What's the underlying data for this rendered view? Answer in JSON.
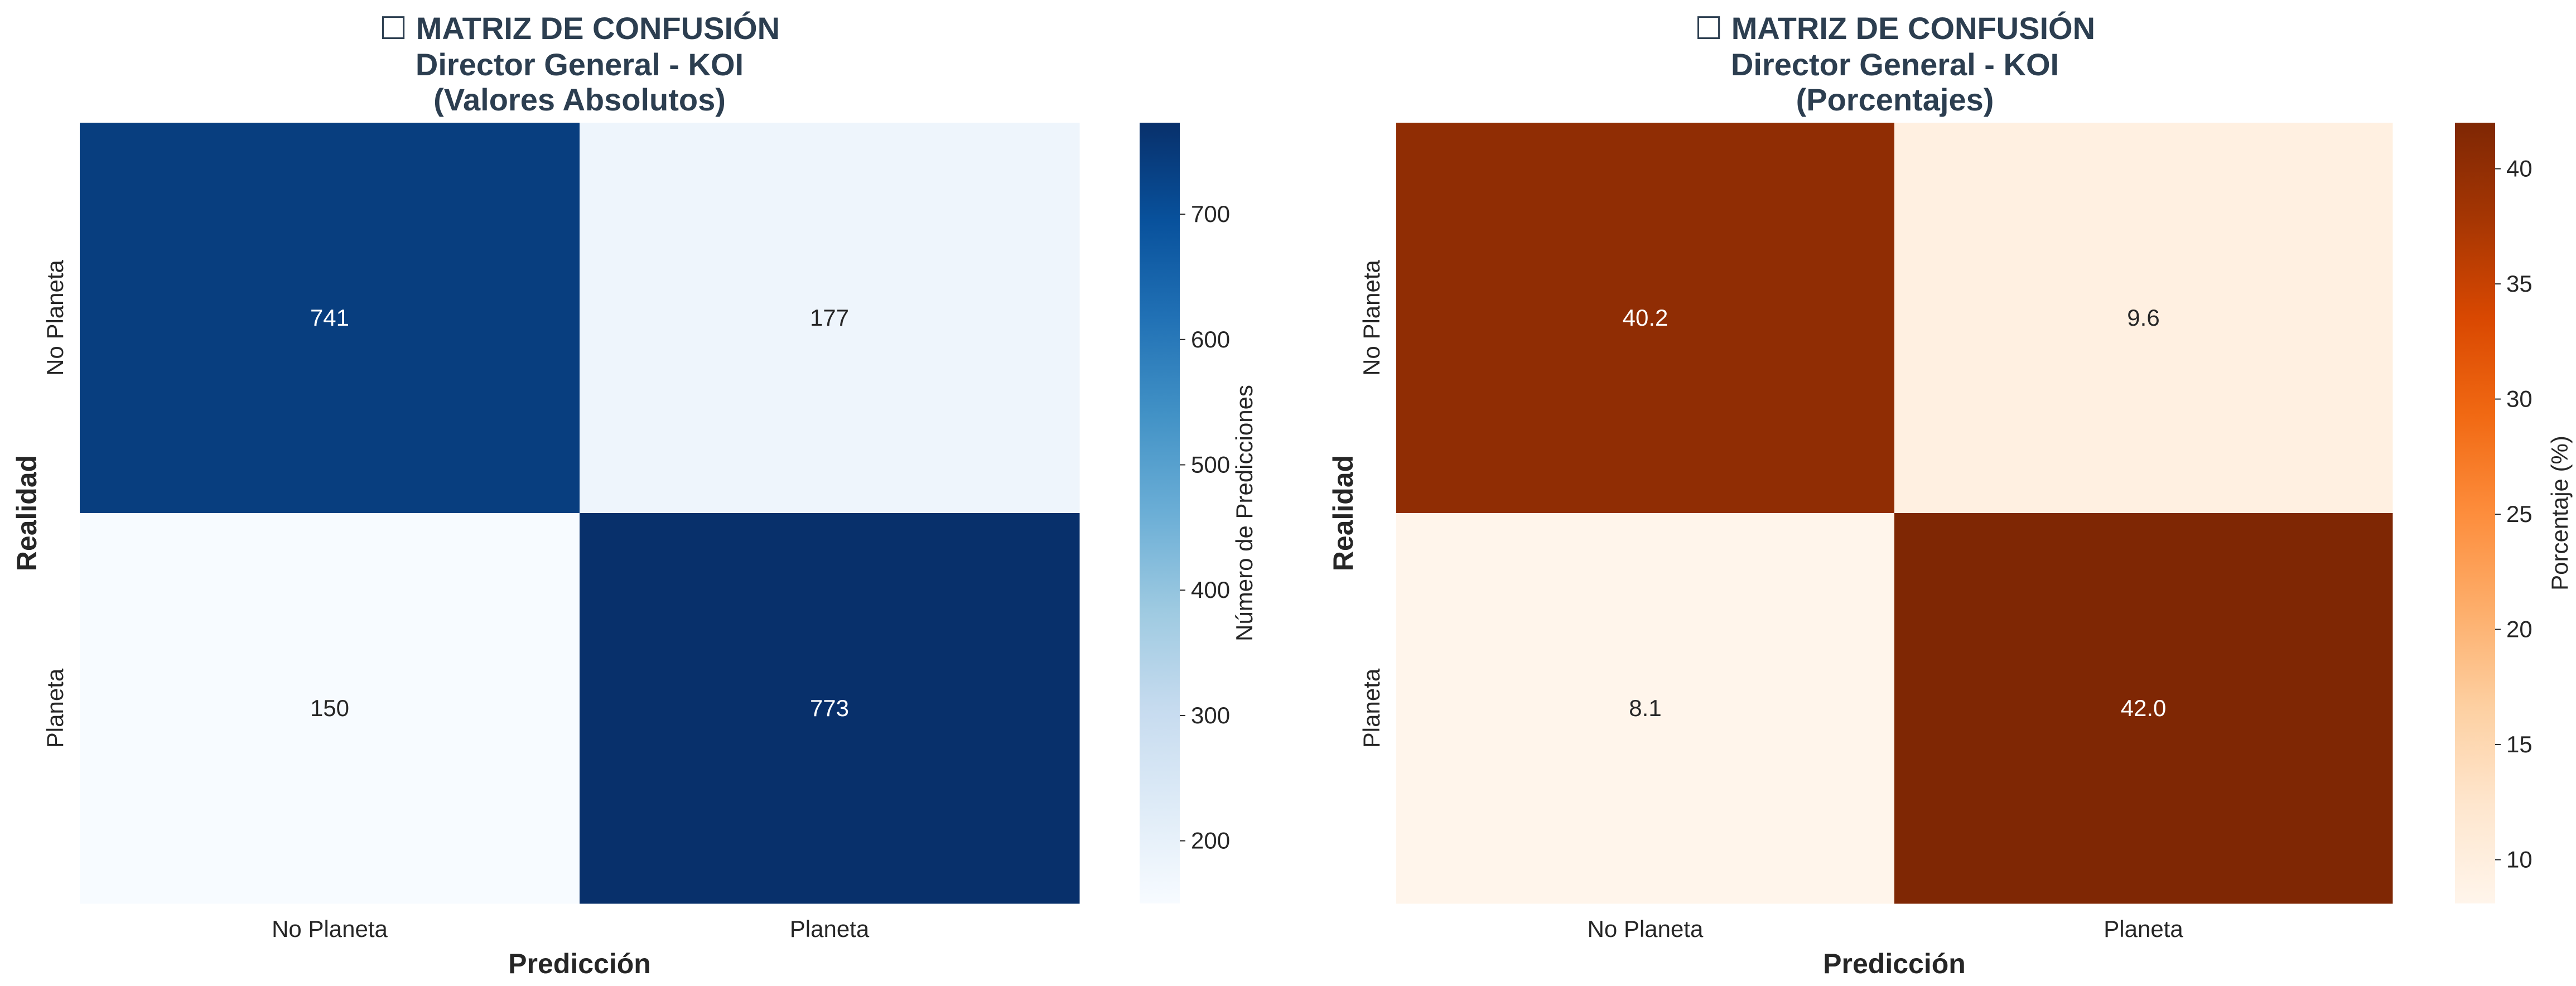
{
  "chart_data": [
    {
      "type": "heatmap",
      "title": [
        "☐ MATRIZ DE CONFUSIÓN",
        "Director General - KOI",
        "(Valores Absolutos)"
      ],
      "xlabel": "Predicción",
      "ylabel": "Realidad",
      "x_categories": [
        "No Planeta",
        "Planeta"
      ],
      "y_categories": [
        "No Planeta",
        "Planeta"
      ],
      "values": [
        [
          741,
          177
        ],
        [
          150,
          773
        ]
      ],
      "value_labels": [
        [
          "741",
          "177"
        ],
        [
          "150",
          "773"
        ]
      ],
      "colormap": "Blues",
      "colors": [
        "#f7fbff",
        "#deebf7",
        "#c6dbef",
        "#9ecae1",
        "#6baed6",
        "#4292c6",
        "#2171b5",
        "#08519c",
        "#08306b"
      ],
      "vmin": 150,
      "vmax": 773,
      "colorbar_label": "Número de Predicciones",
      "colorbar_ticks": [
        200,
        300,
        400,
        500,
        600,
        700
      ]
    },
    {
      "type": "heatmap",
      "title": [
        "☐ MATRIZ DE CONFUSIÓN",
        "Director General - KOI",
        "(Porcentajes)"
      ],
      "xlabel": "Predicción",
      "ylabel": "Realidad",
      "x_categories": [
        "No Planeta",
        "Planeta"
      ],
      "y_categories": [
        "No Planeta",
        "Planeta"
      ],
      "values": [
        [
          40.2,
          9.6
        ],
        [
          8.1,
          42.0
        ]
      ],
      "value_labels": [
        [
          "40.2",
          "9.6"
        ],
        [
          "8.1",
          "42.0"
        ]
      ],
      "colormap": "Oranges",
      "colors": [
        "#fff5eb",
        "#fee6ce",
        "#fdd0a2",
        "#fdae6b",
        "#fd8d3c",
        "#f16913",
        "#d94801",
        "#a63603",
        "#7f2704"
      ],
      "vmin": 8.1,
      "vmax": 42.0,
      "colorbar_label": "Porcentaje (%)",
      "colorbar_ticks": [
        10,
        15,
        20,
        25,
        30,
        35,
        40
      ]
    }
  ]
}
